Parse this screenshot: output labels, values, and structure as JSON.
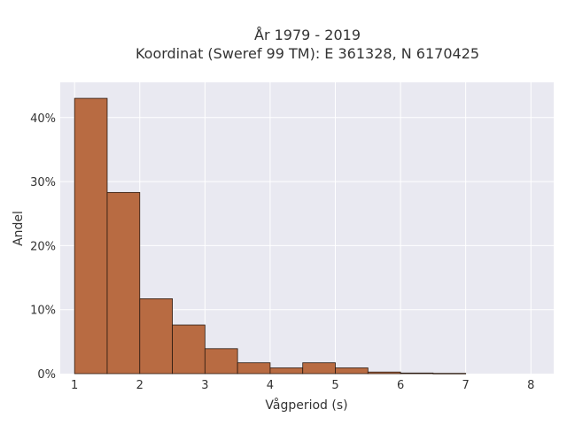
{
  "chart_data": {
    "type": "bar",
    "title": "År 1979 - 2019",
    "subtitle": "Koordinat (Sweref 99 TM): E 361328, N 6170425",
    "xlabel": "Vågperiod (s)",
    "ylabel": "Andel",
    "xlim": [
      0.78,
      8.35
    ],
    "ylim": [
      0,
      45.5
    ],
    "x_ticks": [
      1,
      2,
      3,
      4,
      5,
      6,
      7,
      8
    ],
    "x_tick_labels": [
      "1",
      "2",
      "3",
      "4",
      "5",
      "6",
      "7",
      "8"
    ],
    "y_ticks": [
      0,
      10,
      20,
      30,
      40
    ],
    "y_tick_labels": [
      "0%",
      "10%",
      "20%",
      "30%",
      "40%"
    ],
    "bin_edges": [
      1.0,
      1.5,
      2.0,
      2.5,
      3.0,
      3.5,
      4.0,
      4.5,
      5.0,
      5.5,
      6.0,
      6.5,
      7.0
    ],
    "values": [
      43.0,
      28.3,
      11.7,
      7.6,
      3.9,
      1.7,
      0.9,
      1.7,
      0.9,
      0.25,
      0.1,
      0.05
    ],
    "bar_color": "#b86b42",
    "bar_edge_color": "#2b1a10",
    "plot_background": "#e9e9f1",
    "grid": true,
    "grid_color": "#ffffff"
  }
}
